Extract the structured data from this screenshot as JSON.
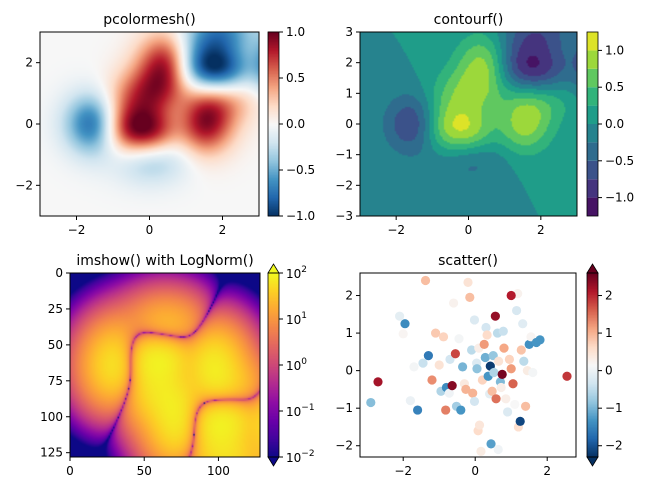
{
  "chart_data": [
    {
      "type": "heatmap",
      "title": "pcolormesh()",
      "xlim": [
        -3,
        3
      ],
      "ylim": [
        -3,
        3
      ],
      "xticks": [
        -2,
        0,
        2
      ],
      "yticks": [
        -2,
        0,
        2
      ],
      "xtick_labels": [
        "−2",
        "0",
        "2"
      ],
      "ytick_labels": [
        "−2",
        "0",
        "2"
      ],
      "colormap": "RdBu_r",
      "grid": false,
      "color_range": [
        -1,
        1
      ],
      "colorbar_ticks": [
        -1,
        -0.5,
        0,
        0.5,
        1
      ],
      "colorbar_labels": [
        "−1.0",
        "−0.5",
        "0.0",
        "0.5",
        "1.0"
      ]
    },
    {
      "type": "contour",
      "title": "contourf()",
      "xlim": [
        -3,
        3
      ],
      "ylim": [
        -3,
        3
      ],
      "xticks": [
        -2,
        0,
        2
      ],
      "yticks": [
        -3,
        -2,
        -1,
        0,
        1,
        2,
        3
      ],
      "xtick_labels": [
        "−2",
        "0",
        "2"
      ],
      "ytick_labels": [
        "−3",
        "−2",
        "−1",
        "0",
        "1",
        "2",
        "3"
      ],
      "colormap": "viridis",
      "grid": false,
      "color_range": [
        -1.25,
        1.25
      ],
      "levels": [
        -1.25,
        -1.0,
        -0.75,
        -0.5,
        -0.25,
        0.0,
        0.25,
        0.5,
        0.75,
        1.0,
        1.25
      ],
      "colorbar_ticks": [
        -1,
        -0.5,
        0,
        0.5,
        1
      ],
      "colorbar_labels": [
        "−1.0",
        "−0.5",
        "0.0",
        "0.5",
        "1.0"
      ]
    },
    {
      "type": "heatmap",
      "title": "imshow() with LogNorm()",
      "xlim": [
        0,
        128
      ],
      "ylim": [
        128,
        0
      ],
      "xticks": [
        0,
        50,
        100
      ],
      "yticks": [
        0,
        25,
        50,
        75,
        100,
        125
      ],
      "xtick_labels": [
        "0",
        "50",
        "100"
      ],
      "ytick_labels": [
        "0",
        "25",
        "50",
        "75",
        "100",
        "125"
      ],
      "colormap": "plasma",
      "scale": "log",
      "grid": false,
      "color_range": [
        0.01,
        100
      ],
      "colorbar_ticks": [
        0.01,
        0.1,
        1,
        10,
        100
      ],
      "colorbar_labels": [
        {
          "base": "10",
          "exp": "−2"
        },
        {
          "base": "10",
          "exp": "−1"
        },
        {
          "base": "10",
          "exp": "0"
        },
        {
          "base": "10",
          "exp": "1"
        },
        {
          "base": "10",
          "exp": "2"
        }
      ]
    },
    {
      "type": "scatter",
      "title": "scatter()",
      "xlim": [
        -3.2,
        2.8
      ],
      "ylim": [
        -2.3,
        2.6
      ],
      "xticks": [
        -2,
        0,
        2
      ],
      "yticks": [
        -2,
        -1,
        0,
        1,
        2
      ],
      "xtick_labels": [
        "−2",
        "0",
        "2"
      ],
      "ytick_labels": [
        "−2",
        "−1",
        "0",
        "1",
        "2"
      ],
      "colormap": "RdBu_r",
      "grid": false,
      "color_range": [
        -2.3,
        2.6
      ],
      "colorbar_ticks": [
        -2,
        -1,
        0,
        1,
        2
      ],
      "colorbar_labels": [
        "−2",
        "−1",
        "0",
        "1",
        "2"
      ],
      "points": [
        [
          -2.9,
          -0.85,
          -0.9
        ],
        [
          -2.7,
          -0.3,
          2.2
        ],
        [
          -2.1,
          1.45,
          -0.1
        ],
        [
          -2.0,
          0.98,
          0.2
        ],
        [
          -1.95,
          1.25,
          -1.4
        ],
        [
          -1.8,
          -0.8,
          0.0
        ],
        [
          -1.7,
          0.1,
          0.1
        ],
        [
          -1.6,
          -1.05,
          -1.5
        ],
        [
          -1.45,
          0.2,
          -0.4
        ],
        [
          -1.38,
          2.4,
          0.9
        ],
        [
          -1.3,
          0.4,
          -1.6
        ],
        [
          -1.2,
          -0.25,
          1.3
        ],
        [
          -1.1,
          1.0,
          0.8
        ],
        [
          -1.0,
          0.15,
          0.5
        ],
        [
          -0.95,
          -0.55,
          -0.6
        ],
        [
          -0.88,
          0.9,
          0.7
        ],
        [
          -0.82,
          -1.05,
          1.4
        ],
        [
          -0.8,
          -0.45,
          -1.4
        ],
        [
          -0.72,
          -0.6,
          0.05
        ],
        [
          -0.7,
          0.3,
          -0.3
        ],
        [
          -0.64,
          -0.4,
          2.4
        ],
        [
          -0.6,
          1.8,
          0.25
        ],
        [
          -0.55,
          0.45,
          1.8
        ],
        [
          -0.52,
          -0.95,
          -0.7
        ],
        [
          -0.45,
          0.85,
          0.1
        ],
        [
          -0.4,
          -1.05,
          -1.3
        ],
        [
          -0.35,
          0.1,
          -1.0
        ],
        [
          -0.3,
          -0.35,
          0.4
        ],
        [
          -0.2,
          2.35,
          0.5
        ],
        [
          -0.15,
          1.95,
          0.9
        ],
        [
          -0.1,
          0.55,
          -0.5
        ],
        [
          -0.07,
          -0.6,
          1.0
        ],
        [
          -0.02,
          -0.82,
          -0.3
        ],
        [
          0.04,
          0.2,
          -0.2
        ],
        [
          0.08,
          -1.6,
          0.6
        ],
        [
          0.1,
          0.6,
          0.3
        ],
        [
          0.12,
          -1.45,
          0.45
        ],
        [
          0.16,
          -2.15,
          0.35
        ],
        [
          0.2,
          -0.25,
          0.7
        ],
        [
          0.25,
          0.7,
          1.2
        ],
        [
          0.28,
          0.35,
          -1.05
        ],
        [
          0.3,
          1.15,
          -0.3
        ],
        [
          0.33,
          0.95,
          0.6
        ],
        [
          0.36,
          -0.15,
          -1.3
        ],
        [
          0.4,
          -0.62,
          -0.1
        ],
        [
          0.42,
          0.12,
          -2.2
        ],
        [
          0.47,
          -0.55,
          0.9
        ],
        [
          0.5,
          0.4,
          -0.8
        ],
        [
          0.52,
          -0.05,
          -0.6
        ],
        [
          0.56,
          1.45,
          2.3
        ],
        [
          0.58,
          -0.75,
          1.5
        ],
        [
          0.62,
          1.0,
          -0.5
        ],
        [
          0.65,
          0.25,
          0.5
        ],
        [
          0.7,
          -0.3,
          -0.95
        ],
        [
          0.72,
          -0.45,
          0.3
        ],
        [
          0.75,
          -0.1,
          2.5
        ],
        [
          0.78,
          1.05,
          -0.4
        ],
        [
          0.8,
          0.6,
          1.1
        ],
        [
          0.85,
          -0.75,
          0.3
        ],
        [
          0.9,
          -1.1,
          -0.2
        ],
        [
          0.95,
          0.3,
          0.7
        ],
        [
          1.0,
          0.05,
          1.2
        ],
        [
          1.05,
          -0.35,
          1.6
        ],
        [
          1.1,
          -0.9,
          0.15
        ],
        [
          1.15,
          1.6,
          -0.25
        ],
        [
          1.18,
          2.05,
          0.25
        ],
        [
          1.2,
          -1.5,
          0.55
        ],
        [
          1.25,
          -1.35,
          -2.1
        ],
        [
          1.28,
          0.55,
          0.85
        ],
        [
          1.32,
          1.25,
          -0.15
        ],
        [
          1.35,
          0.25,
          -0.5
        ],
        [
          1.4,
          -0.95,
          0.9
        ],
        [
          1.45,
          0.0,
          0.35
        ],
        [
          1.5,
          0.7,
          -1.35
        ],
        [
          1.55,
          0.9,
          0.2
        ],
        [
          1.6,
          -0.05,
          0.1
        ],
        [
          1.7,
          0.75,
          -1.3
        ],
        [
          1.8,
          0.82,
          -1.3
        ],
        [
          2.55,
          -0.15,
          1.9
        ],
        [
          -0.26,
          -0.5,
          1.0
        ],
        [
          0.44,
          -1.95,
          -1.2
        ],
        [
          0.64,
          -2.1,
          0.05
        ],
        [
          -0.02,
          1.35,
          -0.2
        ],
        [
          0.05,
          0.05,
          -0.85
        ],
        [
          1.0,
          2.0,
          2.1
        ]
      ]
    }
  ]
}
